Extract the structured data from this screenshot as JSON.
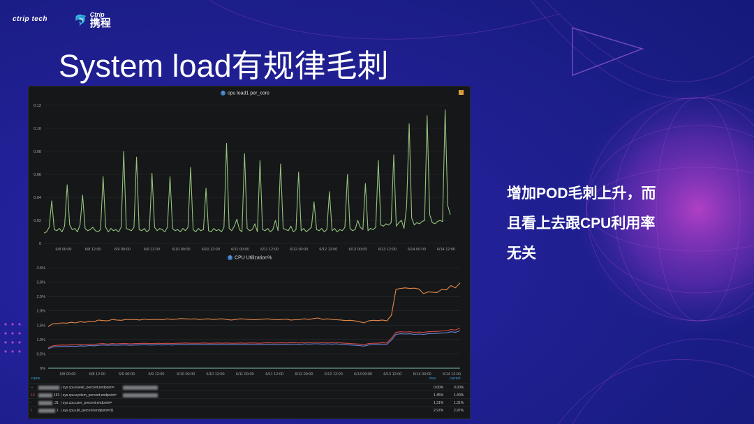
{
  "brand": {
    "logo_left": "ctrip tech",
    "logo_right_top": "Ctrip",
    "logo_right": "携程"
  },
  "slide": {
    "title": "System load有规律毛刺",
    "side_lines": [
      "增加POD毛刺上升，而",
      "且看上去跟CPU利用率",
      "无关"
    ]
  },
  "colors": {
    "bg": "#1b1f8a",
    "green": "#94c47d",
    "orange": "#e5894a",
    "red": "#d14b47",
    "blue": "#6a84d6",
    "teal": "#7fbf9f"
  },
  "chart_data": [
    {
      "type": "line",
      "title": "cpu load1 per_core",
      "ylim": [
        0,
        0.12
      ],
      "yticks": [
        "0",
        "0.02",
        "0.04",
        "0.06",
        "0.08",
        "0.10",
        "0.12"
      ],
      "xticks": [
        "6/8 00:00",
        "6/8 12:00",
        "6/9 00:00",
        "6/9 12:00",
        "6/10 00:00",
        "6/10 12:00",
        "6/11 00:00",
        "6/11 12:00",
        "6/12 00:00",
        "6/12 12:00",
        "6/13 00:00",
        "6/13 12:00",
        "6/14 00:00",
        "6/14 12:00"
      ],
      "series": [
        {
          "name": "load1",
          "values": [
            0.009,
            0.01,
            0.014,
            0.037,
            0.012,
            0.011,
            0.013,
            0.01,
            0.015,
            0.051,
            0.016,
            0.012,
            0.013,
            0.01,
            0.016,
            0.042,
            0.013,
            0.011,
            0.012,
            0.014,
            0.011,
            0.01,
            0.012,
            0.058,
            0.014,
            0.01,
            0.013,
            0.011,
            0.012,
            0.01,
            0.014,
            0.08,
            0.013,
            0.012,
            0.011,
            0.014,
            0.075,
            0.012,
            0.011,
            0.013,
            0.01,
            0.012,
            0.061,
            0.014,
            0.011,
            0.013,
            0.012,
            0.01,
            0.014,
            0.058,
            0.013,
            0.011,
            0.012,
            0.01,
            0.013,
            0.011,
            0.014,
            0.066,
            0.012,
            0.01,
            0.013,
            0.011,
            0.012,
            0.048,
            0.011,
            0.01,
            0.013,
            0.011,
            0.012,
            0.01,
            0.014,
            0.087,
            0.013,
            0.011,
            0.015,
            0.021,
            0.012,
            0.01,
            0.078,
            0.013,
            0.011,
            0.012,
            0.017,
            0.01,
            0.072,
            0.012,
            0.011,
            0.013,
            0.01,
            0.012,
            0.02,
            0.011,
            0.069,
            0.013,
            0.012,
            0.011,
            0.015,
            0.01,
            0.012,
            0.062,
            0.011,
            0.013,
            0.01,
            0.012,
            0.014,
            0.036,
            0.012,
            0.011,
            0.013,
            0.01,
            0.012,
            0.045,
            0.011,
            0.013,
            0.01,
            0.012,
            0.011,
            0.014,
            0.06,
            0.013,
            0.011,
            0.012,
            0.02,
            0.014,
            0.012,
            0.052,
            0.011,
            0.013,
            0.012,
            0.014,
            0.072,
            0.016,
            0.015,
            0.017,
            0.016,
            0.018,
            0.077,
            0.015,
            0.018,
            0.02,
            0.013,
            0.032,
            0.104,
            0.022,
            0.016,
            0.018,
            0.017,
            0.019,
            0.02,
            0.111,
            0.025,
            0.018,
            0.017,
            0.019,
            0.02,
            0.019,
            0.116,
            0.033,
            0.025
          ]
        }
      ]
    },
    {
      "type": "line",
      "title": "CPU Utilization%",
      "ylim": [
        0,
        3.5
      ],
      "yticks": [
        "0%",
        "0.5%",
        "1.0%",
        "1.5%",
        "2.0%",
        "2.5%",
        "3.0%",
        "3.5%"
      ],
      "xticks": [
        "6/8 00:00",
        "6/8 12:00",
        "6/9 00:00",
        "6/9 12:00",
        "6/10 00:00",
        "6/10 12:00",
        "6/11 00:00",
        "6/11 12:00",
        "6/12 00:00",
        "6/12 12:00",
        "6/13 00:00",
        "6/13 12:00",
        "6/14 00:00",
        "6/14 12:00"
      ],
      "series": [
        {
          "name": "sys.cpu.util_percent",
          "color": "orange",
          "values": [
            1.45,
            1.55,
            1.56,
            1.58,
            1.57,
            1.6,
            1.58,
            1.62,
            1.6,
            1.63,
            1.62,
            1.68,
            1.66,
            1.65,
            1.7,
            1.68,
            1.67,
            1.7,
            1.69,
            1.7,
            1.68,
            1.71,
            1.69,
            1.7,
            1.7,
            1.69,
            1.72,
            1.7,
            1.71,
            1.73,
            1.72,
            1.71,
            1.72,
            1.7,
            1.71,
            1.72,
            1.7,
            1.71,
            1.72,
            1.7,
            1.68,
            1.7,
            1.72,
            1.71,
            1.7,
            1.69,
            1.7,
            1.71,
            1.72,
            1.7,
            1.69,
            1.7,
            1.71,
            1.68,
            1.69,
            1.7,
            1.72,
            1.7,
            1.73,
            1.75,
            1.7,
            1.72,
            1.7,
            1.69,
            1.68,
            1.66,
            1.67,
            1.65,
            1.62,
            1.58,
            1.65,
            1.67,
            1.66,
            1.68,
            1.65,
            1.85,
            2.75,
            2.78,
            2.8,
            2.78,
            2.79,
            2.76,
            2.6,
            2.66,
            2.65,
            2.64,
            2.75,
            2.73,
            2.88,
            2.8,
            2.97
          ]
        },
        {
          "name": "sys.cpu.system_percent",
          "color": "red",
          "values": [
            0.72,
            0.78,
            0.8,
            0.81,
            0.8,
            0.82,
            0.82,
            0.83,
            0.82,
            0.84,
            0.83,
            0.85,
            0.86,
            0.84,
            0.86,
            0.85,
            0.86,
            0.86,
            0.85,
            0.86,
            0.86,
            0.87,
            0.86,
            0.86,
            0.87,
            0.86,
            0.87,
            0.86,
            0.87,
            0.87,
            0.88,
            0.87,
            0.87,
            0.87,
            0.88,
            0.87,
            0.87,
            0.88,
            0.87,
            0.88,
            0.87,
            0.87,
            0.88,
            0.87,
            0.88,
            0.88,
            0.87,
            0.88,
            0.89,
            0.88,
            0.88,
            0.89,
            0.88,
            0.89,
            0.89,
            0.88,
            0.9,
            0.89,
            0.9,
            0.9,
            0.89,
            0.9,
            0.89,
            0.9,
            0.88,
            0.87,
            0.86,
            0.85,
            0.84,
            0.82,
            0.86,
            0.87,
            0.87,
            0.89,
            0.88,
            1.05,
            1.25,
            1.27,
            1.26,
            1.27,
            1.25,
            1.26,
            1.25,
            1.27,
            1.28,
            1.28,
            1.3,
            1.3,
            1.35,
            1.33,
            1.4
          ]
        },
        {
          "name": "sys.cpu.user_percent",
          "color": "blue",
          "values": [
            0.68,
            0.74,
            0.75,
            0.76,
            0.75,
            0.77,
            0.76,
            0.78,
            0.77,
            0.79,
            0.78,
            0.8,
            0.81,
            0.8,
            0.81,
            0.8,
            0.81,
            0.81,
            0.8,
            0.81,
            0.81,
            0.82,
            0.81,
            0.81,
            0.82,
            0.81,
            0.82,
            0.81,
            0.82,
            0.82,
            0.83,
            0.82,
            0.82,
            0.82,
            0.83,
            0.82,
            0.82,
            0.83,
            0.82,
            0.83,
            0.82,
            0.82,
            0.83,
            0.82,
            0.83,
            0.83,
            0.82,
            0.83,
            0.84,
            0.83,
            0.83,
            0.84,
            0.83,
            0.84,
            0.84,
            0.83,
            0.85,
            0.84,
            0.85,
            0.85,
            0.84,
            0.85,
            0.84,
            0.85,
            0.83,
            0.82,
            0.81,
            0.8,
            0.79,
            0.77,
            0.81,
            0.82,
            0.82,
            0.84,
            0.83,
            0.98,
            1.18,
            1.2,
            1.19,
            1.2,
            1.18,
            1.19,
            1.18,
            1.2,
            1.21,
            1.21,
            1.23,
            1.23,
            1.27,
            1.25,
            1.31
          ]
        },
        {
          "name": "sys.cpu.iowait_percent",
          "color": "teal",
          "values": [
            0.0,
            0.0,
            0.0,
            0.0,
            0.0,
            0.0,
            0.0,
            0.0,
            0.0,
            0.0,
            0.0,
            0.0,
            0.0,
            0.0,
            0.0,
            0.0,
            0.0,
            0.0,
            0.0,
            0.0,
            0.0,
            0.0,
            0.0,
            0.0,
            0.0,
            0.0,
            0.0,
            0.0,
            0.0,
            0.0,
            0.0,
            0.0,
            0.0,
            0.0,
            0.0,
            0.0,
            0.0,
            0.0,
            0.0,
            0.0,
            0.0,
            0.0,
            0.0,
            0.0,
            0.0,
            0.0,
            0.0,
            0.0,
            0.0,
            0.0,
            0.0,
            0.0,
            0.0,
            0.0,
            0.0,
            0.0,
            0.0,
            0.0,
            0.0,
            0.0,
            0.0,
            0.0,
            0.0,
            0.0,
            0.0,
            0.0,
            0.0,
            0.0,
            0.0,
            0.0,
            0.0,
            0.0,
            0.0,
            0.0,
            0.0,
            0.0,
            0.0,
            0.0,
            0.0,
            0.0,
            0.0,
            0.0,
            0.0,
            0.0,
            0.0,
            0.0,
            0.0,
            0.0,
            0.0,
            0.0,
            0.0
          ]
        }
      ]
    }
  ],
  "legend": {
    "header": {
      "name": "name",
      "max": "max",
      "current": "current"
    },
    "rows": [
      {
        "prefix": "--",
        "label": "| sys.cpu.iowait_percent;endpoint=",
        "max": "0.00%",
        "current": "0.00%",
        "color": "teal"
      },
      {
        "prefix": "10.",
        "prefix2": "161",
        "label": "| sys.cpu.system_percent;endpoint=",
        "max": "1.45%",
        "current": "1.40%",
        "color": "red"
      },
      {
        "prefix": "",
        "prefix2": ".31",
        "label": "| sys.cpu.user_percent;endpoint=",
        "max": "1.31%",
        "current": "1.31%",
        "color": "blue"
      },
      {
        "prefix": "",
        "prefix2": "1",
        "label": "| sys.cpu.util_percent;endpoint=31",
        "max": "2.97%",
        "current": "2.97%",
        "color": "orange"
      }
    ]
  }
}
